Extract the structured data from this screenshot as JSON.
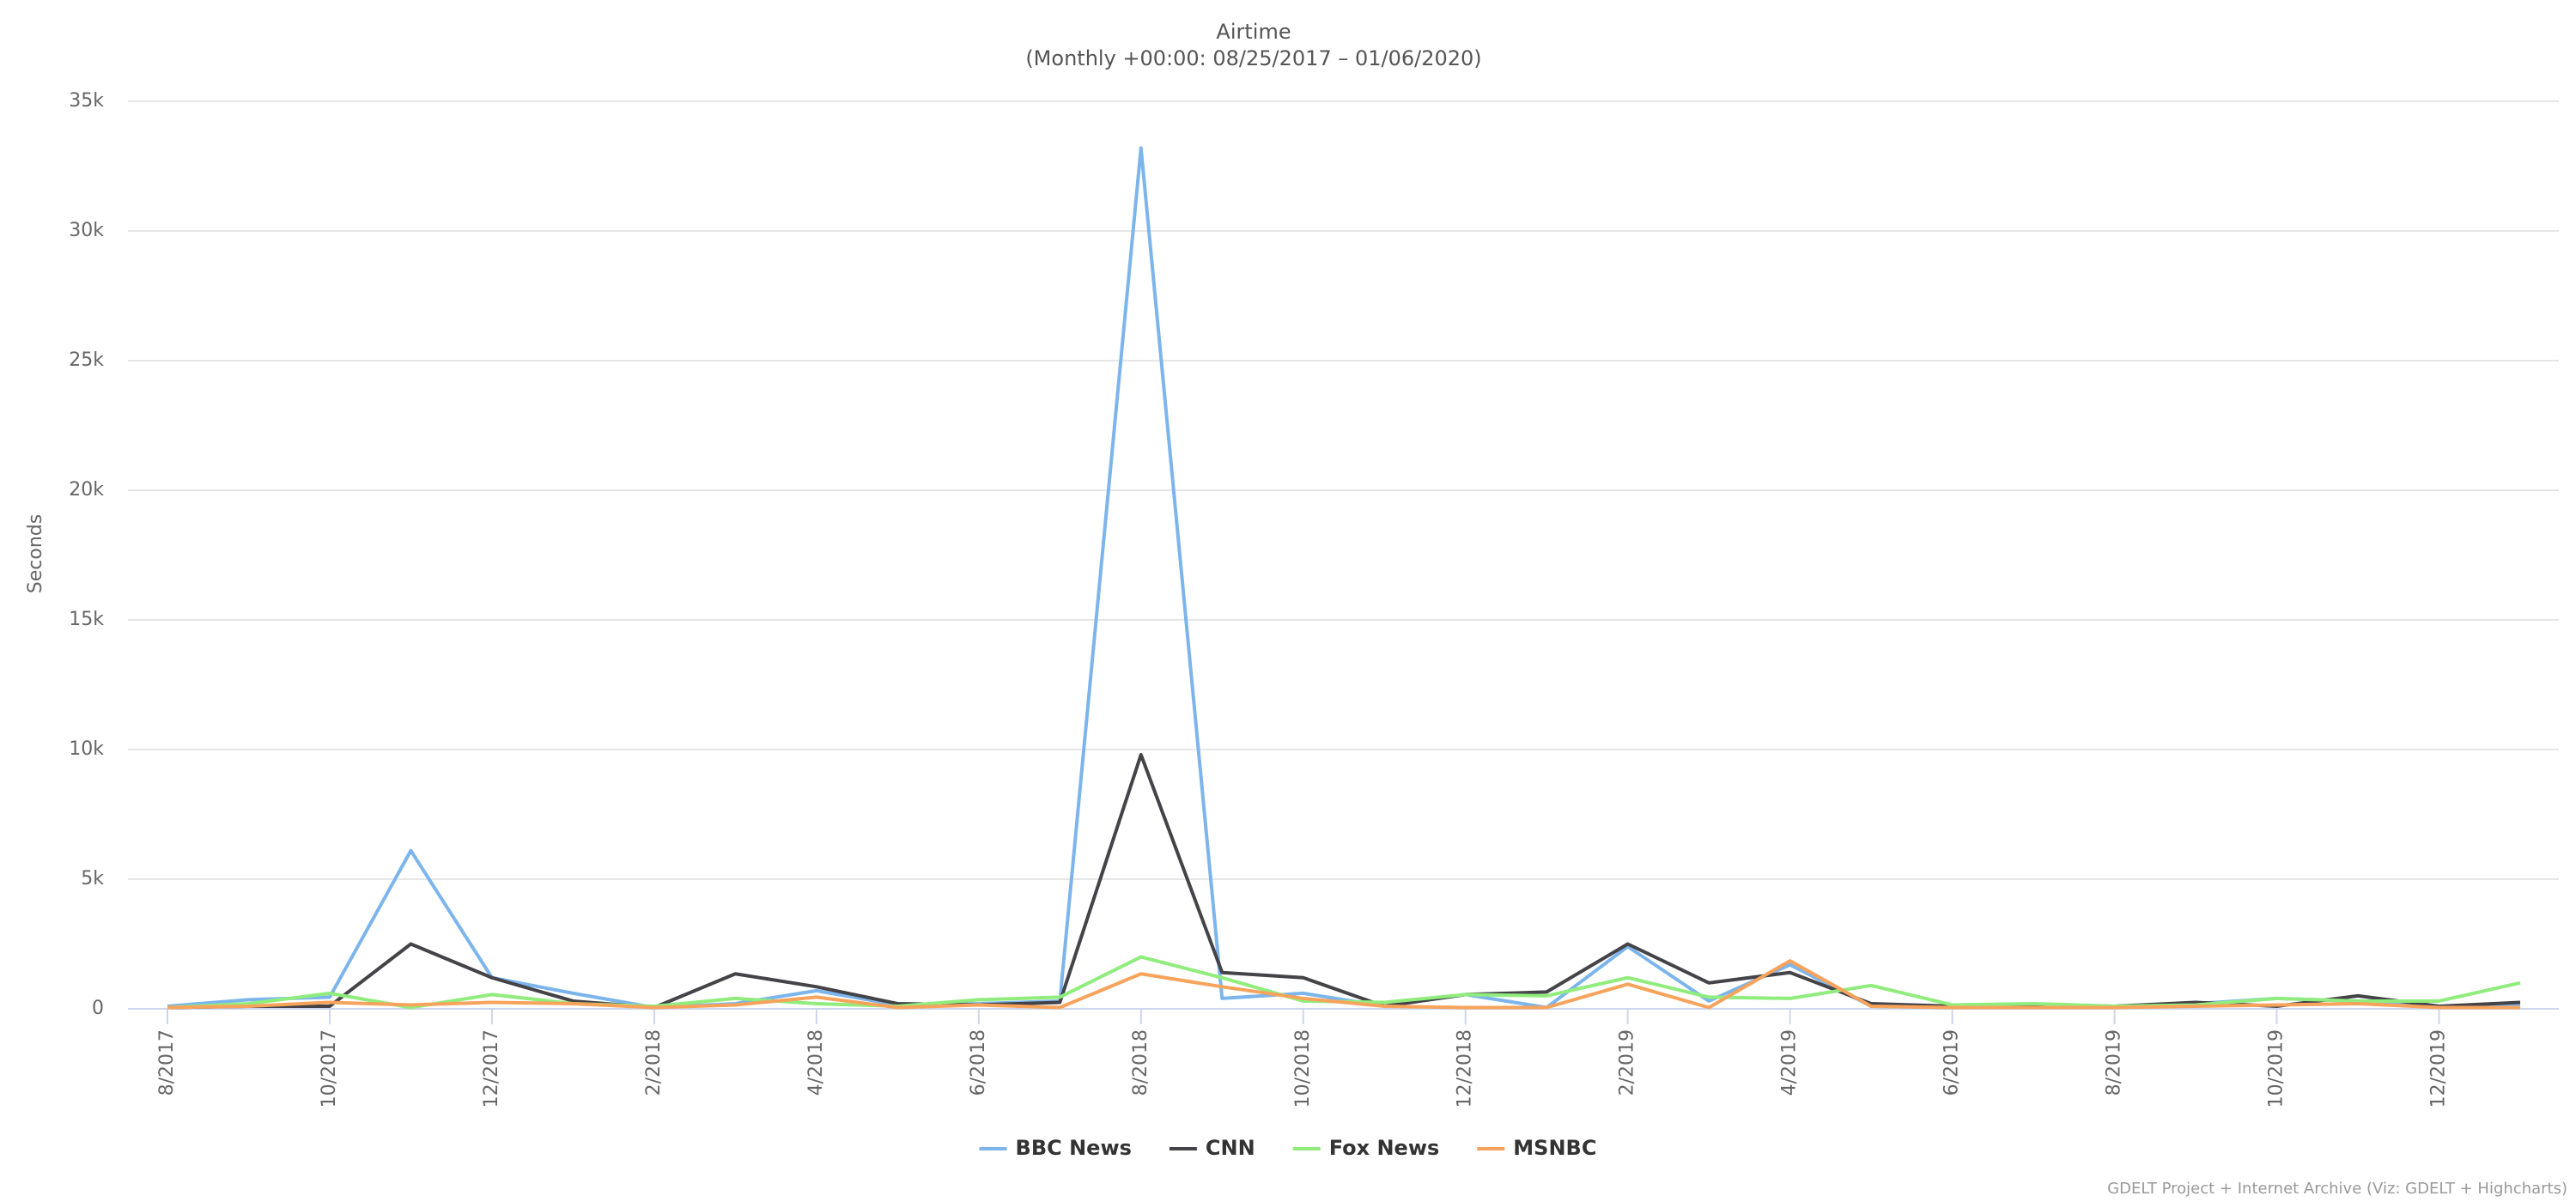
{
  "chart_data": {
    "type": "line",
    "title": "Airtime",
    "subtitle": "(Monthly +00:00: 08/25/2017 – 01/06/2020)",
    "y_label": "Seconds",
    "credits": "GDELT Project + Internet Archive (Viz: GDELT + Highcharts)",
    "categories": [
      "8/2017",
      null,
      "10/2017",
      null,
      "12/2017",
      null,
      "2/2018",
      null,
      "4/2018",
      null,
      "6/2018",
      null,
      "8/2018",
      null,
      "10/2018",
      null,
      "12/2018",
      null,
      "2/2019",
      null,
      "4/2019",
      null,
      "6/2019",
      null,
      "8/2019",
      null,
      "10/2019",
      null,
      "12/2019",
      null
    ],
    "series": [
      {
        "name": "BBC News",
        "color": "#7cb5ec",
        "values": [
          100,
          350,
          450,
          6100,
          1200,
          600,
          50,
          200,
          700,
          150,
          200,
          300,
          33200,
          400,
          600,
          100,
          550,
          50,
          2400,
          300,
          1700,
          100,
          50,
          50,
          100,
          200,
          400,
          300,
          100,
          150
        ]
      },
      {
        "name": "CNN",
        "color": "#434348",
        "values": [
          50,
          100,
          100,
          2500,
          1200,
          300,
          50,
          1350,
          850,
          200,
          150,
          250,
          9800,
          1400,
          1200,
          100,
          550,
          650,
          2500,
          1000,
          1400,
          200,
          100,
          150,
          100,
          250,
          100,
          500,
          100,
          250
        ]
      },
      {
        "name": "Fox News",
        "color": "#90ed7d",
        "values": [
          50,
          200,
          600,
          50,
          550,
          200,
          100,
          400,
          200,
          100,
          350,
          450,
          2000,
          1200,
          300,
          250,
          550,
          500,
          1200,
          450,
          400,
          900,
          150,
          200,
          100,
          150,
          400,
          300,
          300,
          1000
        ]
      },
      {
        "name": "MSNBC",
        "color": "#f7a35c",
        "values": [
          50,
          100,
          250,
          150,
          250,
          200,
          50,
          150,
          450,
          50,
          150,
          50,
          1350,
          850,
          400,
          100,
          50,
          50,
          950,
          50,
          1850,
          100,
          50,
          50,
          50,
          100,
          150,
          200,
          50,
          50
        ]
      }
    ],
    "ylim": [
      0,
      35000
    ],
    "yticks": [
      0,
      {
        "value": 5000,
        "label": "5k"
      },
      {
        "value": 10000,
        "label": "10k"
      },
      {
        "value": 15000,
        "label": "15k"
      },
      {
        "value": 20000,
        "label": "20k"
      },
      {
        "value": 25000,
        "label": "25k"
      },
      {
        "value": 30000,
        "label": "30k"
      },
      {
        "value": 35000,
        "label": "35k"
      }
    ],
    "grid": true,
    "legend": "bottom"
  }
}
